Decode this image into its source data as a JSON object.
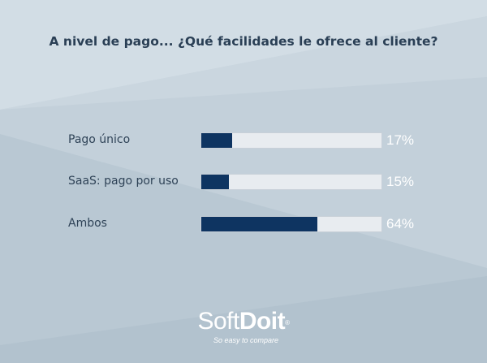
{
  "chart_data": {
    "type": "bar",
    "orientation": "horizontal",
    "title": "A nivel de pago... ¿Qué facilidades le ofrece al cliente?",
    "categories": [
      "Pago único",
      "SaaS: pago por uso",
      "Ambos"
    ],
    "values": [
      17,
      15,
      64
    ],
    "value_labels": [
      "17%",
      "15%",
      "64%"
    ],
    "xlim": [
      0,
      100
    ],
    "grid": false,
    "legend": "none"
  },
  "brand": {
    "name_light": "Soft",
    "name_bold": "Doit",
    "registered": "®",
    "tagline": "So easy to compare"
  },
  "colors": {
    "bar_fill": "#0e3461",
    "bar_track": "#e8ecf0",
    "title_text": "#2a3f55",
    "label_text": "#2f4357",
    "value_text": "#ffffff",
    "background": "#c3d0da"
  }
}
